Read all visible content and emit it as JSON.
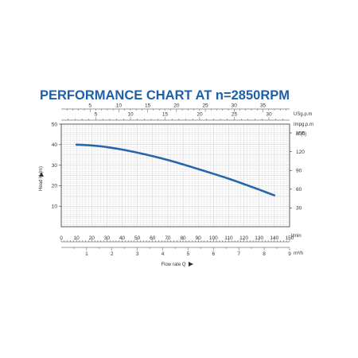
{
  "chart_data": {
    "type": "line",
    "title": "PERFORMANCE CHART AT n=2850RPM",
    "ylabel": "Head H (m)",
    "ylabel_right": "H (ft)",
    "xlabel": "Flow rate Q",
    "xunit": "l/min",
    "xunit_m3h": "m³/h",
    "top_unit_1": "USg.p.m",
    "top_unit_2": "Impg.p.m",
    "xlim": [
      0,
      150
    ],
    "ylim": [
      0,
      50
    ],
    "x_ticks": [
      0,
      10,
      20,
      30,
      40,
      50,
      60,
      70,
      80,
      90,
      100,
      110,
      120,
      130,
      140,
      150
    ],
    "y_ticks": [
      10,
      20,
      30,
      40,
      50
    ],
    "ft_ticks": [
      30,
      60,
      90,
      120,
      150
    ],
    "m3h_ticks": [
      1,
      2,
      3,
      4,
      5,
      6,
      7,
      8,
      9
    ],
    "usgpm_ticks": [
      5,
      10,
      15,
      20,
      25,
      30,
      35
    ],
    "impgpm_ticks": [
      5,
      10,
      15,
      20,
      25,
      30
    ],
    "series": [
      {
        "x": [
          10,
          20,
          30,
          40,
          50,
          60,
          70,
          80,
          90,
          100,
          110,
          120,
          130,
          140
        ],
        "values": [
          40,
          39.6,
          38.8,
          37.6,
          36.1,
          34.4,
          32.5,
          30.4,
          28.1,
          25.8,
          23.4,
          20.8,
          18.1,
          15.3
        ]
      }
    ],
    "colors": {
      "title": "#1e5fa8",
      "curve": "#2566ad",
      "grid": "#cccccc",
      "axis": "#333333"
    }
  }
}
